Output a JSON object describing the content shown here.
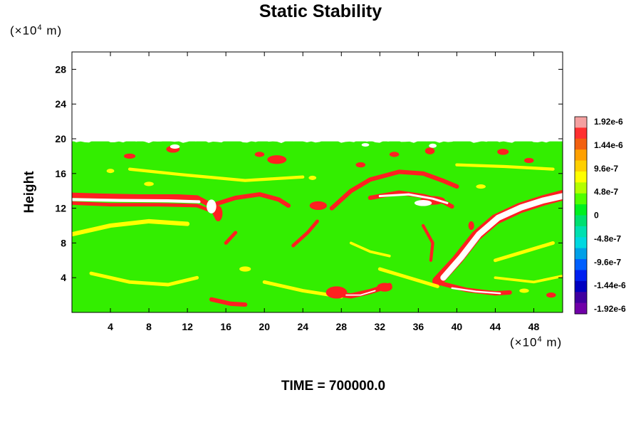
{
  "title": "Static Stability",
  "time_label": "TIME = 700000.0",
  "chart_data": {
    "type": "heatmap",
    "title": "Static Stability",
    "xlabel": "",
    "ylabel": "Height",
    "x_unit": {
      "base": "(×10",
      "exp": "4",
      "suffix": " m)"
    },
    "y_unit": {
      "base": "(×10",
      "exp": "4",
      "suffix": " m)"
    },
    "xlim": [
      0,
      51
    ],
    "ylim": [
      0,
      30
    ],
    "x_ticks": [
      4,
      8,
      12,
      16,
      20,
      24,
      28,
      32,
      36,
      40,
      44,
      48
    ],
    "y_ticks": [
      4,
      8,
      12,
      16,
      20,
      24,
      28
    ],
    "data_top": 19.7,
    "colorbar": {
      "labels": [
        "1.92e-6",
        "1.44e-6",
        "9.6e-7",
        "4.8e-7",
        "0",
        "-4.8e-7",
        "-9.6e-7",
        "-1.44e-6",
        "-1.92e-6"
      ],
      "colors_top_to_bottom": [
        "#f4a0a0",
        "#ff3030",
        "#f26010",
        "#ffa000",
        "#ffd000",
        "#ffff00",
        "#b4ff00",
        "#50ff00",
        "#00f020",
        "#00e070",
        "#00e0b0",
        "#00d8e0",
        "#00a0e8",
        "#0060ff",
        "#0020f0",
        "#0000c0",
        "#4000a0",
        "#7000a8"
      ]
    },
    "features": [
      {
        "kind": "band",
        "points": [
          [
            0,
            13.5
          ],
          [
            3,
            13.4
          ],
          [
            7,
            13.3
          ],
          [
            11,
            13.3
          ],
          [
            13,
            13.2
          ],
          [
            14.5,
            12.3
          ],
          [
            15,
            11.2
          ]
        ],
        "color": "#ff2020",
        "width": 0.6
      },
      {
        "kind": "band",
        "points": [
          [
            0,
            12.6
          ],
          [
            4,
            12.4
          ],
          [
            9,
            12.4
          ],
          [
            13,
            12.3
          ],
          [
            14.2,
            11.8
          ]
        ],
        "color": "#ff2020",
        "width": 0.4
      },
      {
        "kind": "band",
        "points": [
          [
            15,
            12.5
          ],
          [
            17,
            13.2
          ],
          [
            19.5,
            13.6
          ],
          [
            21.5,
            13.0
          ],
          [
            22.5,
            12.3
          ]
        ],
        "color": "#ff2020",
        "width": 0.5
      },
      {
        "kind": "band",
        "points": [
          [
            27,
            12.0
          ],
          [
            29,
            14.0
          ],
          [
            31,
            15.3
          ],
          [
            34,
            16.2
          ],
          [
            36.5,
            16.0
          ],
          [
            38.5,
            15.2
          ],
          [
            40,
            14.5
          ]
        ],
        "color": "#ff2020",
        "width": 0.5
      },
      {
        "kind": "band",
        "points": [
          [
            31,
            13.2
          ],
          [
            34,
            13.8
          ],
          [
            36.5,
            13.4
          ],
          [
            38.5,
            12.8
          ],
          [
            39.5,
            12.2
          ]
        ],
        "color": "#ff2020",
        "width": 0.5
      },
      {
        "kind": "band",
        "points": [
          [
            38,
            3.6
          ],
          [
            40,
            6.0
          ],
          [
            42,
            8.8
          ],
          [
            44,
            10.7
          ],
          [
            46.5,
            12.0
          ],
          [
            49,
            12.9
          ],
          [
            51,
            13.5
          ]
        ],
        "color": "#ff2020",
        "width": 1.2
      },
      {
        "kind": "band",
        "points": [
          [
            38.5,
            3.3
          ],
          [
            41,
            2.6
          ],
          [
            44,
            2.2
          ],
          [
            45.5,
            2.3
          ]
        ],
        "color": "#ff2020",
        "width": 0.5
      },
      {
        "kind": "band",
        "points": [
          [
            27.5,
            2.1
          ],
          [
            29,
            1.9
          ],
          [
            31,
            2.4
          ],
          [
            33,
            3.1
          ]
        ],
        "color": "#ff2020",
        "width": 0.6
      },
      {
        "kind": "band",
        "points": [
          [
            14.5,
            1.5
          ],
          [
            16.5,
            1.0
          ],
          [
            18,
            0.9
          ]
        ],
        "color": "#ff2020",
        "width": 0.5
      },
      {
        "kind": "band",
        "points": [
          [
            16,
            8.0
          ],
          [
            17,
            9.2
          ]
        ],
        "color": "#ff2020",
        "width": 0.4
      },
      {
        "kind": "band",
        "points": [
          [
            23,
            7.7
          ],
          [
            24.5,
            9.2
          ],
          [
            25.5,
            10.5
          ]
        ],
        "color": "#ff2020",
        "width": 0.4
      },
      {
        "kind": "band",
        "points": [
          [
            36.5,
            10.0
          ],
          [
            37.5,
            8.0
          ],
          [
            37.3,
            6.0
          ]
        ],
        "color": "#ff2020",
        "width": 0.35
      },
      {
        "kind": "band",
        "points": [
          [
            0,
            9.0
          ],
          [
            4,
            10.0
          ],
          [
            8,
            10.5
          ],
          [
            12,
            10.2
          ]
        ],
        "color": "#ffff00",
        "width": 0.5
      },
      {
        "kind": "band",
        "points": [
          [
            2,
            4.5
          ],
          [
            6,
            3.5
          ],
          [
            10,
            3.2
          ],
          [
            13,
            4.0
          ]
        ],
        "color": "#ffff00",
        "width": 0.4
      },
      {
        "kind": "band",
        "points": [
          [
            20,
            3.5
          ],
          [
            24,
            2.5
          ],
          [
            28,
            1.8
          ]
        ],
        "color": "#ffff00",
        "width": 0.4
      },
      {
        "kind": "band",
        "points": [
          [
            32,
            5.0
          ],
          [
            35,
            4.0
          ],
          [
            38,
            3.0
          ]
        ],
        "color": "#ffff00",
        "width": 0.4
      },
      {
        "kind": "band",
        "points": [
          [
            44,
            6.0
          ],
          [
            47,
            7.0
          ],
          [
            50,
            8.0
          ]
        ],
        "color": "#ffff00",
        "width": 0.4
      },
      {
        "kind": "band",
        "points": [
          [
            6,
            16.5
          ],
          [
            12,
            15.8
          ],
          [
            18,
            15.2
          ],
          [
            24,
            15.6
          ]
        ],
        "color": "#ffff00",
        "width": 0.35
      },
      {
        "kind": "band",
        "points": [
          [
            40,
            17.0
          ],
          [
            45,
            16.8
          ],
          [
            50,
            16.5
          ]
        ],
        "color": "#ffff00",
        "width": 0.35
      },
      {
        "kind": "band",
        "points": [
          [
            29,
            8.0
          ],
          [
            31,
            7.0
          ],
          [
            33,
            6.5
          ]
        ],
        "color": "#ffff00",
        "width": 0.3
      },
      {
        "kind": "band",
        "points": [
          [
            44,
            4.0
          ],
          [
            48,
            3.5
          ],
          [
            51,
            4.2
          ]
        ],
        "color": "#ffff00",
        "width": 0.3
      },
      {
        "kind": "blob",
        "x": 27.5,
        "y": 2.3,
        "rx": 1.1,
        "ry": 0.7,
        "color": "#ff2020"
      },
      {
        "kind": "blob",
        "x": 32.5,
        "y": 2.9,
        "rx": 0.8,
        "ry": 0.5,
        "color": "#ff2020"
      },
      {
        "kind": "blob",
        "x": 15.2,
        "y": 11.4,
        "rx": 0.45,
        "ry": 0.9,
        "color": "#ff2020"
      },
      {
        "kind": "blob",
        "x": 21.3,
        "y": 17.6,
        "rx": 1.0,
        "ry": 0.5,
        "color": "#ff2020"
      },
      {
        "kind": "blob",
        "x": 25.6,
        "y": 12.3,
        "rx": 0.9,
        "ry": 0.5,
        "color": "#ff2020"
      },
      {
        "kind": "blob",
        "x": 37.5,
        "y": 12.9,
        "rx": 1.3,
        "ry": 0.5,
        "color": "#ff2020"
      },
      {
        "kind": "blob",
        "x": 10.5,
        "y": 18.8,
        "rx": 0.7,
        "ry": 0.4,
        "color": "#ff2020"
      },
      {
        "kind": "blob",
        "x": 37.2,
        "y": 18.6,
        "rx": 0.5,
        "ry": 0.4,
        "color": "#ff2020"
      },
      {
        "kind": "blob",
        "x": 6.0,
        "y": 18.0,
        "rx": 0.6,
        "ry": 0.3,
        "color": "#ff2020"
      },
      {
        "kind": "blob",
        "x": 19.5,
        "y": 18.2,
        "rx": 0.5,
        "ry": 0.3,
        "color": "#ff2020"
      },
      {
        "kind": "blob",
        "x": 44.8,
        "y": 18.5,
        "rx": 0.6,
        "ry": 0.35,
        "color": "#ff2020"
      },
      {
        "kind": "blob",
        "x": 47.5,
        "y": 17.5,
        "rx": 0.5,
        "ry": 0.3,
        "color": "#ff2020"
      },
      {
        "kind": "blob",
        "x": 30.0,
        "y": 17.0,
        "rx": 0.5,
        "ry": 0.3,
        "color": "#ff2020"
      },
      {
        "kind": "blob",
        "x": 33.5,
        "y": 18.2,
        "rx": 0.5,
        "ry": 0.3,
        "color": "#ff2020"
      },
      {
        "kind": "blob",
        "x": 41.5,
        "y": 10.0,
        "rx": 0.3,
        "ry": 0.5,
        "color": "#ff2020"
      },
      {
        "kind": "blob",
        "x": 49.8,
        "y": 2.0,
        "rx": 0.5,
        "ry": 0.3,
        "color": "#ff2020"
      },
      {
        "kind": "blob",
        "x": 14.5,
        "y": 12.2,
        "rx": 0.5,
        "ry": 0.8,
        "color": "#ffffff"
      },
      {
        "kind": "blob",
        "x": 36.5,
        "y": 12.6,
        "rx": 0.9,
        "ry": 0.35,
        "color": "#ffffff"
      },
      {
        "kind": "blob",
        "x": 10.7,
        "y": 19.1,
        "rx": 0.5,
        "ry": 0.25,
        "color": "#ffffff"
      },
      {
        "kind": "blob",
        "x": 37.5,
        "y": 19.2,
        "rx": 0.4,
        "ry": 0.25,
        "color": "#ffffff"
      },
      {
        "kind": "blob",
        "x": 30.5,
        "y": 19.3,
        "rx": 0.4,
        "ry": 0.2,
        "color": "#ffffff"
      },
      {
        "kind": "blob",
        "x": 4.0,
        "y": 16.3,
        "rx": 0.4,
        "ry": 0.25,
        "color": "#ffff00"
      },
      {
        "kind": "blob",
        "x": 8.0,
        "y": 14.8,
        "rx": 0.5,
        "ry": 0.25,
        "color": "#ffff00"
      },
      {
        "kind": "blob",
        "x": 25.0,
        "y": 15.5,
        "rx": 0.4,
        "ry": 0.25,
        "color": "#ffff00"
      },
      {
        "kind": "blob",
        "x": 42.5,
        "y": 14.5,
        "rx": 0.5,
        "ry": 0.25,
        "color": "#ffff00"
      },
      {
        "kind": "blob",
        "x": 18.0,
        "y": 5.0,
        "rx": 0.6,
        "ry": 0.3,
        "color": "#ffff00"
      },
      {
        "kind": "blob",
        "x": 47.0,
        "y": 2.5,
        "rx": 0.5,
        "ry": 0.25,
        "color": "#ffff00"
      },
      {
        "kind": "band",
        "points": [
          [
            38.6,
            4.0
          ],
          [
            40.5,
            6.4
          ],
          [
            42.3,
            9.0
          ],
          [
            44.3,
            10.9
          ],
          [
            46.7,
            12.1
          ],
          [
            49,
            12.9
          ],
          [
            51,
            13.4
          ]
        ],
        "color": "#ffffff",
        "width": 0.7
      },
      {
        "kind": "band",
        "points": [
          [
            0,
            13.0
          ],
          [
            5,
            12.9
          ],
          [
            10,
            12.85
          ],
          [
            13.2,
            12.75
          ]
        ],
        "color": "#ffffff",
        "width": 0.35
      },
      {
        "kind": "band",
        "points": [
          [
            32,
            13.4
          ],
          [
            35,
            13.6
          ],
          [
            37.5,
            13.1
          ],
          [
            39,
            12.6
          ]
        ],
        "color": "#ffffff",
        "width": 0.25
      },
      {
        "kind": "band",
        "points": [
          [
            39.5,
            2.8
          ],
          [
            42,
            2.4
          ],
          [
            44.5,
            2.2
          ]
        ],
        "color": "#ffffff",
        "width": 0.2
      },
      {
        "kind": "band",
        "points": [
          [
            28.5,
            2.0
          ],
          [
            30,
            2.0
          ],
          [
            31.5,
            2.5
          ]
        ],
        "color": "#ffffff",
        "width": 0.15
      }
    ]
  }
}
